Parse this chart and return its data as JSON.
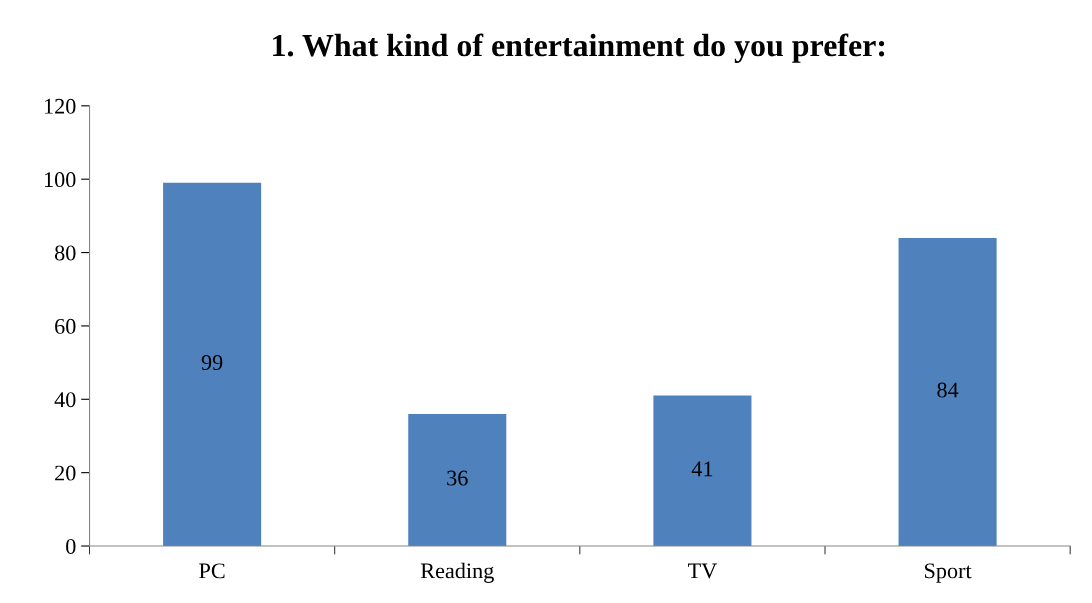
{
  "chart_data": {
    "type": "bar",
    "title": "1. What kind of entertainment do you prefer:",
    "categories": [
      "PC",
      "Reading",
      "TV",
      "Sport"
    ],
    "values": [
      99,
      36,
      41,
      84
    ],
    "color": "#4f81bd",
    "ylim": [
      0,
      120
    ],
    "yticks": [
      0,
      20,
      40,
      60,
      80,
      100,
      120
    ],
    "grid": false,
    "data_labels": true,
    "legend": false
  }
}
